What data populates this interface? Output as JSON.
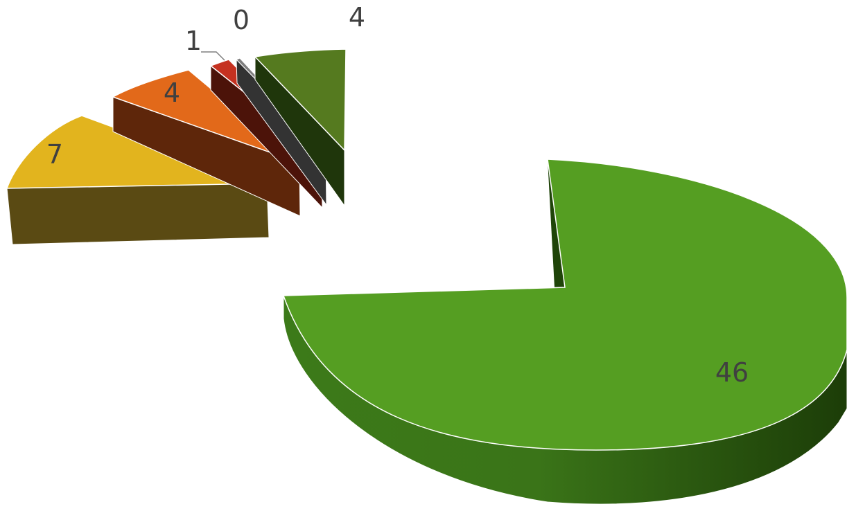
{
  "chart_data": {
    "type": "pie",
    "title": "",
    "style": "3d-exploded",
    "grid": false,
    "legend": "none",
    "slices": [
      {
        "value": 46,
        "label": "46",
        "color": "#559E22"
      },
      {
        "value": 7,
        "label": "7",
        "color": "#E2B41E"
      },
      {
        "value": 4,
        "label": "4",
        "color": "#E2691A"
      },
      {
        "value": 1,
        "label": "1",
        "color": "#C53120"
      },
      {
        "value": 0,
        "label": "0",
        "color": "#7F7F7F"
      },
      {
        "value": 4,
        "label": "4",
        "color": "#557A1F"
      }
    ]
  }
}
